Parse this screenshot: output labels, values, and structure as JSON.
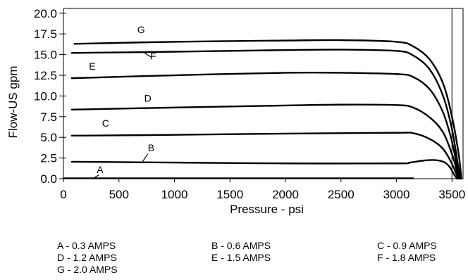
{
  "chart_data": {
    "type": "line",
    "title": "",
    "xlabel": "Pressure - psi",
    "ylabel": "Flow-US gpm",
    "xlim": [
      0,
      3600
    ],
    "ylim": [
      0,
      20
    ],
    "x_ticks": [
      0,
      500,
      1000,
      1500,
      2000,
      2500,
      3000,
      3500
    ],
    "x_tick_labels": [
      "0",
      "500",
      "1000",
      "1500",
      "2000",
      "2500",
      "3000",
      "3500"
    ],
    "y_ticks": [
      0,
      2.5,
      5,
      7.5,
      10,
      12.5,
      15,
      17.5,
      20
    ],
    "y_tick_labels": [
      "0.0",
      "2.5",
      "5.0",
      "7.5",
      "10.0",
      "12.5",
      "15.0",
      "17.5",
      "20.0"
    ],
    "grid": false,
    "series": [
      {
        "name": "A",
        "points": [
          [
            0,
            0.05
          ],
          [
            3150,
            0.05
          ]
        ]
      },
      {
        "name": "B",
        "points": [
          [
            75,
            2.05
          ],
          [
            1000,
            1.95
          ],
          [
            2000,
            1.85
          ],
          [
            3000,
            1.85
          ],
          [
            3120,
            1.95
          ],
          [
            3250,
            2.2
          ],
          [
            3350,
            2.25
          ],
          [
            3430,
            2.0
          ],
          [
            3480,
            1.4
          ],
          [
            3520,
            0.5
          ],
          [
            3545,
            0.0
          ]
        ]
      },
      {
        "name": "C",
        "points": [
          [
            75,
            5.2
          ],
          [
            1000,
            5.3
          ],
          [
            2000,
            5.45
          ],
          [
            3000,
            5.55
          ],
          [
            3150,
            5.5
          ],
          [
            3300,
            4.8
          ],
          [
            3420,
            3.6
          ],
          [
            3500,
            1.8
          ],
          [
            3545,
            0.4
          ],
          [
            3560,
            0.0
          ]
        ]
      },
      {
        "name": "D",
        "points": [
          [
            75,
            8.35
          ],
          [
            1000,
            8.6
          ],
          [
            2000,
            8.85
          ],
          [
            2500,
            8.95
          ],
          [
            3000,
            8.9
          ],
          [
            3150,
            8.6
          ],
          [
            3300,
            7.4
          ],
          [
            3420,
            5.6
          ],
          [
            3510,
            2.6
          ],
          [
            3550,
            0.6
          ],
          [
            3565,
            0.0
          ]
        ]
      },
      {
        "name": "E",
        "points": [
          [
            75,
            12.15
          ],
          [
            1000,
            12.5
          ],
          [
            2000,
            12.8
          ],
          [
            2500,
            12.8
          ],
          [
            3000,
            12.65
          ],
          [
            3150,
            12.3
          ],
          [
            3300,
            10.8
          ],
          [
            3420,
            8.0
          ],
          [
            3500,
            4.5
          ],
          [
            3550,
            1.2
          ],
          [
            3570,
            0.0
          ]
        ]
      },
      {
        "name": "F",
        "points": [
          [
            75,
            15.2
          ],
          [
            1000,
            15.35
          ],
          [
            2000,
            15.55
          ],
          [
            2500,
            15.6
          ],
          [
            3000,
            15.45
          ],
          [
            3150,
            14.9
          ],
          [
            3300,
            13.2
          ],
          [
            3420,
            10.0
          ],
          [
            3500,
            6.0
          ],
          [
            3550,
            2.0
          ],
          [
            3575,
            0.0
          ]
        ]
      },
      {
        "name": "G",
        "points": [
          [
            100,
            16.3
          ],
          [
            1000,
            16.55
          ],
          [
            2000,
            16.7
          ],
          [
            2500,
            16.75
          ],
          [
            3000,
            16.55
          ],
          [
            3150,
            16.0
          ],
          [
            3300,
            14.4
          ],
          [
            3420,
            11.5
          ],
          [
            3500,
            7.5
          ],
          [
            3560,
            3.0
          ],
          [
            3585,
            0.0
          ]
        ]
      }
    ],
    "curve_labels": [
      {
        "text": "A",
        "x": 330,
        "y": 0.7,
        "leader": [
          [
            280,
            0.15
          ],
          [
            320,
            0.45
          ]
        ]
      },
      {
        "text": "B",
        "x": 790,
        "y": 3.3,
        "leader": [
          [
            715,
            2.1
          ],
          [
            760,
            3.0
          ]
        ]
      },
      {
        "text": "C",
        "x": 380,
        "y": 6.3
      },
      {
        "text": "D",
        "x": 760,
        "y": 9.3
      },
      {
        "text": "E",
        "x": 260,
        "y": 13.2
      },
      {
        "text": "F",
        "x": 810,
        "y": 14.4,
        "leader": [
          [
            730,
            15.2
          ],
          [
            790,
            14.7
          ]
        ]
      },
      {
        "text": "G",
        "x": 700,
        "y": 17.6
      }
    ]
  },
  "legend": [
    {
      "text": "A - 0.3 AMPS"
    },
    {
      "text": "B - 0.6 AMPS"
    },
    {
      "text": "C - 0.9 AMPS"
    },
    {
      "text": "D - 1.2 AMPS"
    },
    {
      "text": "E - 1.5 AMPS"
    },
    {
      "text": "F - 1.8 AMPS"
    },
    {
      "text": "G - 2.0 AMPS"
    }
  ]
}
